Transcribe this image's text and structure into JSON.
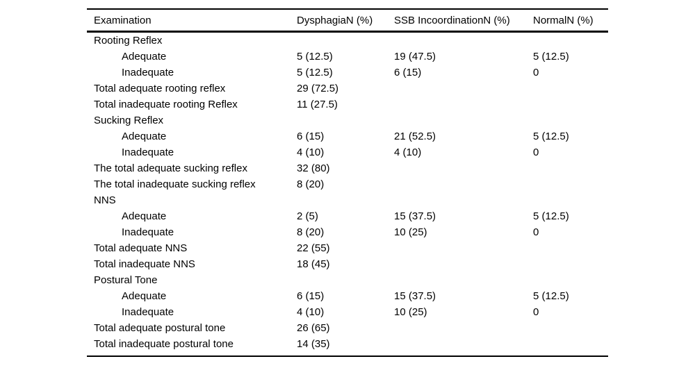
{
  "table": {
    "columns": [
      "Examination",
      "DysphagiaN (%)",
      "SSB IncoordinationN (%)",
      "NormalN (%)"
    ],
    "rows": [
      {
        "label": "Rooting Reflex",
        "indent": 0,
        "values": [
          "",
          "",
          ""
        ]
      },
      {
        "label": "Adequate",
        "indent": 1,
        "values": [
          "5 (12.5)",
          "19 (47.5)",
          "5 (12.5)"
        ]
      },
      {
        "label": "Inadequate",
        "indent": 1,
        "values": [
          "5 (12.5)",
          "6 (15)",
          "0"
        ]
      },
      {
        "label": "Total adequate rooting reflex",
        "indent": 0,
        "values": [
          "29 (72.5)",
          "",
          ""
        ]
      },
      {
        "label": "Total inadequate rooting Reflex",
        "indent": 0,
        "values": [
          "11 (27.5)",
          "",
          ""
        ]
      },
      {
        "label": "Sucking Reflex",
        "indent": 0,
        "values": [
          "",
          "",
          ""
        ]
      },
      {
        "label": "Adequate",
        "indent": 1,
        "values": [
          "6 (15)",
          "21 (52.5)",
          "5 (12.5)"
        ]
      },
      {
        "label": "Inadequate",
        "indent": 1,
        "values": [
          "4 (10)",
          "4 (10)",
          "0"
        ]
      },
      {
        "label": "The total adequate sucking reflex",
        "indent": 0,
        "values": [
          "32 (80)",
          "",
          ""
        ]
      },
      {
        "label": "The total inadequate sucking reflex",
        "indent": 0,
        "values": [
          "8 (20)",
          "",
          ""
        ]
      },
      {
        "label": "NNS",
        "indent": 0,
        "values": [
          "",
          "",
          ""
        ]
      },
      {
        "label": "Adequate",
        "indent": 1,
        "values": [
          "2 (5)",
          "15 (37.5)",
          "5 (12.5)"
        ]
      },
      {
        "label": "Inadequate",
        "indent": 1,
        "values": [
          "8 (20)",
          "10 (25)",
          "0"
        ]
      },
      {
        "label": "Total adequate NNS",
        "indent": 0,
        "values": [
          "22 (55)",
          "",
          ""
        ]
      },
      {
        "label": "Total inadequate NNS",
        "indent": 0,
        "values": [
          "18 (45)",
          "",
          ""
        ]
      },
      {
        "label": "Postural Tone",
        "indent": 0,
        "values": [
          "",
          "",
          ""
        ]
      },
      {
        "label": "Adequate",
        "indent": 1,
        "values": [
          "6 (15)",
          "15 (37.5)",
          "5 (12.5)"
        ]
      },
      {
        "label": "Inadequate",
        "indent": 1,
        "values": [
          "4 (10)",
          "10 (25)",
          "0"
        ]
      },
      {
        "label": "Total adequate postural tone",
        "indent": 0,
        "values": [
          "26 (65)",
          "",
          ""
        ]
      },
      {
        "label": "Total inadequate postural tone",
        "indent": 0,
        "values": [
          "14 (35)",
          "",
          ""
        ]
      }
    ]
  }
}
